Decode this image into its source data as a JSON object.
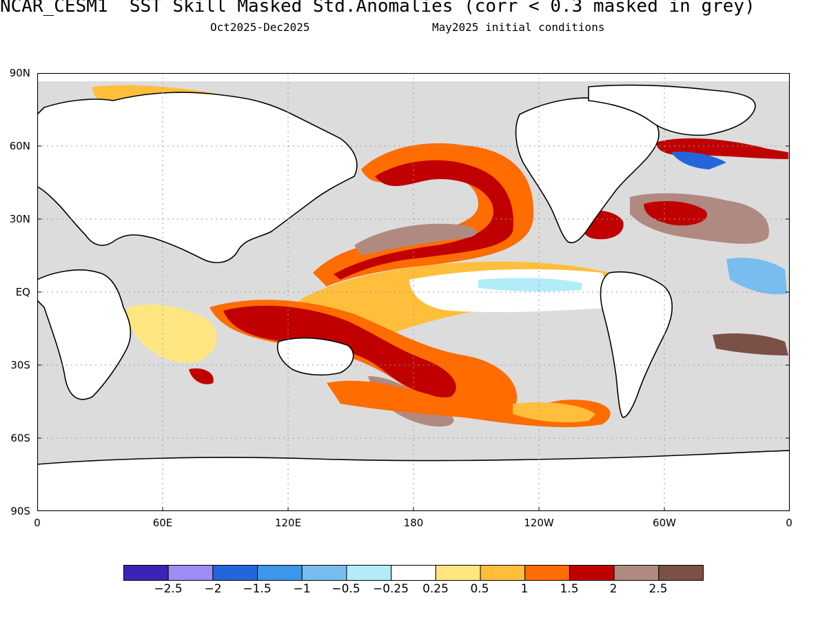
{
  "header": {
    "title": "NCAR_CESM1  SST Skill Masked Std.Anomalies (corr < 0.3 masked in grey)",
    "period": "Oct2025-Dec2025",
    "init": "May2025 initial conditions"
  },
  "axes": {
    "lat_ticks": [
      "90N",
      "60N",
      "30N",
      "EQ",
      "30S",
      "60S",
      "90S"
    ],
    "lon_ticks": [
      "0",
      "60E",
      "120E",
      "180",
      "120W",
      "60W",
      "0"
    ]
  },
  "colorbar": {
    "colors": [
      "#3a24b8",
      "#9f8cf2",
      "#2366dc",
      "#3d96ea",
      "#78bcf0",
      "#b2ecf8",
      "#ffffff",
      "#ffe680",
      "#ffbe3c",
      "#ff6c00",
      "#c00000",
      "#b08a80",
      "#7b5046"
    ],
    "labels": [
      "-2.5",
      "-2",
      "-1.5",
      "-1",
      "-0.5",
      "-0.25",
      "0.25",
      "0.5",
      "1",
      "1.5",
      "2",
      "2.5"
    ]
  },
  "palette": {
    "mask_grey": "#dcdcdc",
    "land": "#ffffff",
    "coast": "#000000"
  }
}
